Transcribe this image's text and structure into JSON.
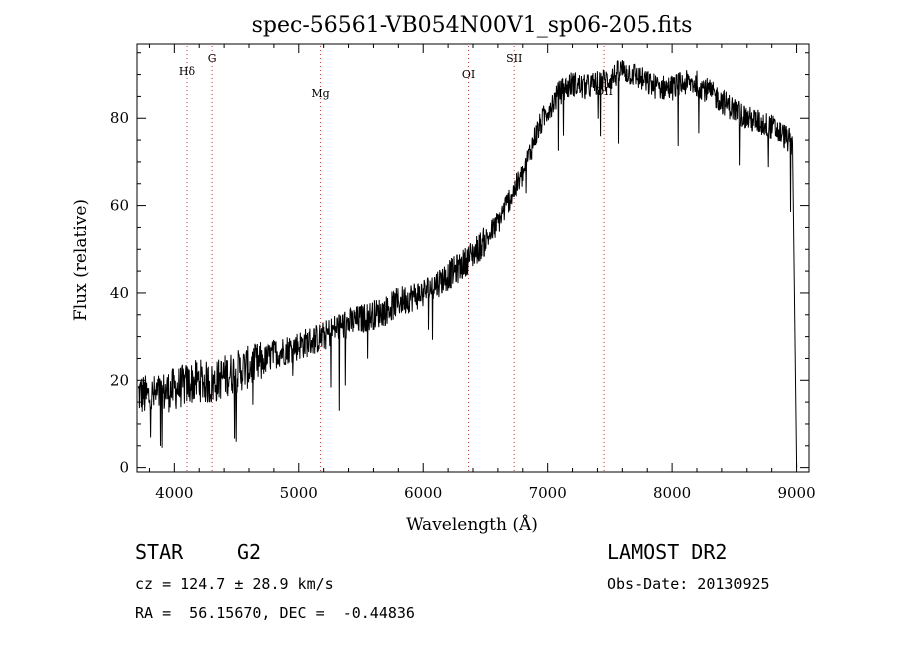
{
  "chart_data": {
    "type": "line",
    "title": "spec-56561-VB054N00V1_sp06-205.fits",
    "xlabel": "Wavelength (Å)",
    "ylabel": "Flux (relative)",
    "xlim": [
      3700,
      9100
    ],
    "ylim": [
      -1,
      97
    ],
    "xticks": [
      4000,
      5000,
      6000,
      7000,
      8000,
      9000
    ],
    "yticks": [
      0,
      20,
      40,
      60,
      80
    ],
    "grid": false,
    "lines": [
      {
        "label": "Hδ",
        "wavelength": 4102
      },
      {
        "label": "G",
        "wavelength": 4304
      },
      {
        "label": "Mg",
        "wavelength": 5175
      },
      {
        "label": "OI",
        "wavelength": 6364
      },
      {
        "label": "SII",
        "wavelength": 6731
      },
      {
        "label": "OII",
        "wavelength": 7454
      }
    ],
    "line_color": "#cc3333",
    "spectrum_color": "#000000",
    "series": [
      {
        "x": [
          3710,
          3800,
          3900,
          4000,
          4100,
          4200,
          4300,
          4400,
          4500,
          4600,
          4700,
          4800,
          4900,
          5000,
          5100,
          5200,
          5300,
          5400,
          5500,
          5600,
          5700,
          5800,
          5900,
          6000,
          6100,
          6200,
          6300,
          6400,
          6500,
          6600,
          6700,
          6800,
          6900,
          7000,
          7100,
          7200,
          7300,
          7400,
          7500,
          7600,
          7700,
          7800,
          7900,
          8000,
          8100,
          8200,
          8300,
          8400,
          8500,
          8600,
          8700,
          8800,
          8900,
          8970,
          9000
        ],
        "y": [
          17,
          16,
          17,
          18,
          19,
          20,
          19,
          21,
          22,
          23,
          24,
          26,
          27,
          28,
          29,
          30,
          32,
          33,
          34,
          35,
          36,
          38,
          39,
          40,
          42,
          44,
          46,
          49,
          52,
          56,
          62,
          67,
          76,
          82,
          86,
          88,
          87,
          88,
          89,
          91,
          90,
          88,
          87,
          87,
          88,
          88,
          86,
          84,
          82,
          80,
          79,
          78,
          76,
          74,
          0
        ]
      }
    ]
  },
  "info": {
    "object_type": "STAR",
    "subclass": "G2",
    "survey": "LAMOST DR2",
    "redshift": "cz = 124.7 ± 28.9 km/s",
    "obs_date": "Obs-Date: 20130925",
    "coords": "RA =  56.15670, DEC =  -0.44836"
  }
}
